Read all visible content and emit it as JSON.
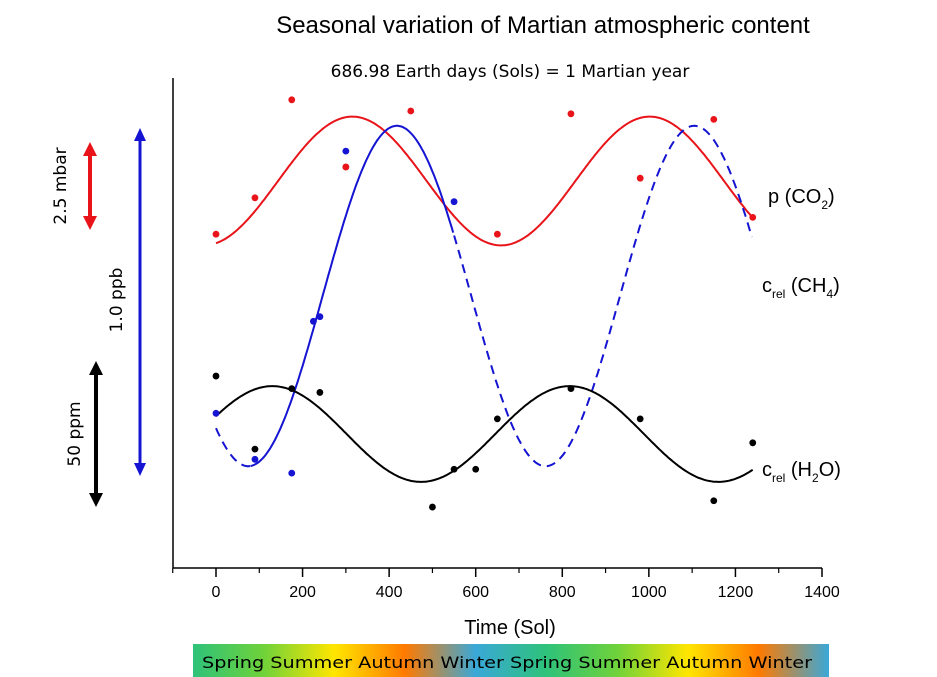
{
  "chart_data": {
    "type": "scatter",
    "title": "Seasonal variation of Martian atmospheric content",
    "subtitle": "686.98 Earth days (Sols) = 1 Martian year",
    "xlabel": "Time (Sol)",
    "ylabel": "",
    "xlim": [
      -100,
      1400
    ],
    "xticks": [
      0,
      200,
      400,
      600,
      800,
      1000,
      1200,
      1400
    ],
    "grid": false,
    "series": [
      {
        "label_main": "p (",
        "label_species": "CO",
        "label_sub": "2",
        "label_end": ")",
        "color": "#e8141a",
        "points": [
          [
            0,
            2.6
          ],
          [
            90,
            3.25
          ],
          [
            175,
            5.0
          ],
          [
            300,
            3.8
          ],
          [
            300,
            3.8
          ],
          [
            450,
            4.8
          ],
          [
            650,
            2.6
          ],
          [
            820,
            4.75
          ],
          [
            980,
            3.6
          ],
          [
            1150,
            4.65
          ],
          [
            1240,
            2.9
          ]
        ],
        "fit_mean": 3.55,
        "fit_amplitude": 1.15,
        "fit_peak_sol": 315
      },
      {
        "label_main": "c",
        "label_rel": "rel",
        "label_species": " (CH",
        "label_sub": "4",
        "label_end": ")",
        "color": "#1414d2",
        "points": [
          [
            0,
            0.16
          ],
          [
            90,
            0.06
          ],
          [
            175,
            0.03
          ],
          [
            225,
            0.36
          ],
          [
            240,
            0.37
          ],
          [
            300,
            0.73
          ],
          [
            550,
            0.62
          ]
        ],
        "fit_mean": 0.415,
        "fit_amplitude": 0.37,
        "fit_peak_sol": 418,
        "solid_until": 550
      },
      {
        "label_main": "c",
        "label_rel": "rel",
        "label_species": " (H",
        "label_sub": "2",
        "label_end": "O)",
        "color": "#000000",
        "points": [
          [
            0,
            78
          ],
          [
            90,
            49
          ],
          [
            175,
            73
          ],
          [
            240,
            71.5
          ],
          [
            500,
            26
          ],
          [
            550,
            41
          ],
          [
            600,
            41
          ],
          [
            650,
            61
          ],
          [
            820,
            73
          ],
          [
            980,
            61
          ],
          [
            1150,
            28.5
          ],
          [
            1240,
            51.5
          ]
        ],
        "fit_mean": 55,
        "fit_amplitude": 19,
        "fit_peak_sol": 130
      }
    ],
    "scale_bars": [
      {
        "label": "2.5 mbar",
        "color": "#e8141a"
      },
      {
        "label": "1.0 ppb",
        "color": "#1414d2"
      },
      {
        "label": "50 ppm",
        "color": "#000000"
      }
    ],
    "season_bar": {
      "text": "Spring Summer Autumn Winter Spring Summer Autumn Winter",
      "colors": [
        "#2ec27a",
        "#6fd23a",
        "#ffe600",
        "#ff7a00",
        "#3aa8d8",
        "#2ec27a",
        "#6fd23a",
        "#ffe600",
        "#ff7a00",
        "#3aa8d8"
      ]
    }
  }
}
